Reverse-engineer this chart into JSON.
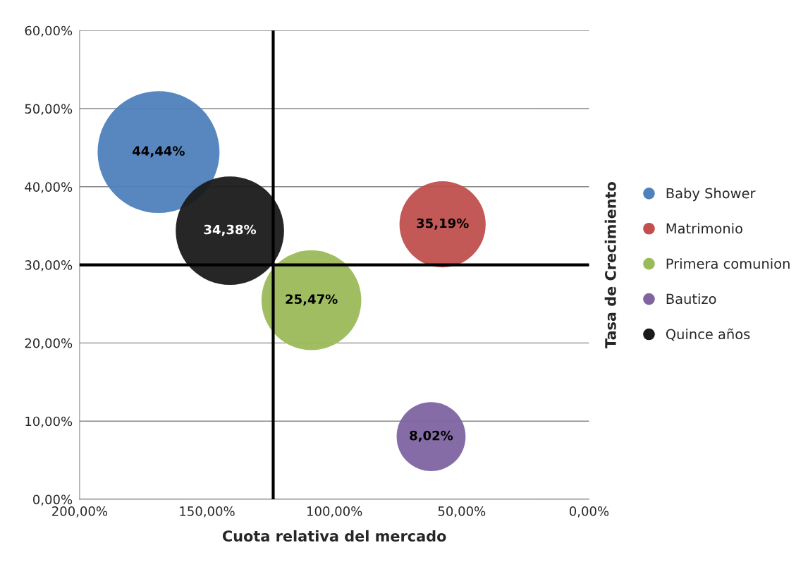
{
  "chart_data": {
    "type": "bubble",
    "xlabel": "Cuota relativa del mercado",
    "ylabel": "Tasa de Crecimiento",
    "xlim": [
      200,
      0
    ],
    "xticks": [
      {
        "value": 200,
        "label": "200,00%"
      },
      {
        "value": 150,
        "label": "150,00%"
      },
      {
        "value": 100,
        "label": "100,00%"
      },
      {
        "value": 50,
        "label": "50,00%"
      },
      {
        "value": 0,
        "label": "0,00%"
      }
    ],
    "ylim": [
      0,
      60
    ],
    "yticks": [
      {
        "value": 0,
        "label": "0,00%"
      },
      {
        "value": 10,
        "label": "10,00%"
      },
      {
        "value": 20,
        "label": "20,00%"
      },
      {
        "value": 30,
        "label": "30,00%"
      },
      {
        "value": 40,
        "label": "40,00%"
      },
      {
        "value": 50,
        "label": "50,00%"
      },
      {
        "value": 60,
        "label": "60,00%"
      }
    ],
    "grid": "y",
    "legend": "right",
    "ref_lines": [
      {
        "axis": "x",
        "value": 124,
        "color": "#000000"
      },
      {
        "axis": "y",
        "value": 30,
        "color": "#000000"
      }
    ],
    "series": [
      {
        "name": "Baby Shower",
        "color": "#4f81bd",
        "x": [
          169
        ],
        "values": [
          44.44
        ],
        "sizes": [
          1
        ],
        "value_labels": [
          "44,44%"
        ]
      },
      {
        "name": "Matrimonio",
        "color": "#c0504d",
        "x": [
          57.5
        ],
        "values": [
          35.19
        ],
        "sizes": [
          0.5
        ],
        "value_labels": [
          "35,19%"
        ]
      },
      {
        "name": "Primera comunion",
        "color": "#9bbb59",
        "x": [
          109
        ],
        "values": [
          25.47
        ],
        "sizes": [
          0.67
        ],
        "value_labels": [
          "25,47%"
        ]
      },
      {
        "name": "Bautizo",
        "color": "#8064a2",
        "x": [
          62
        ],
        "values": [
          8.02
        ],
        "sizes": [
          0.32
        ],
        "value_labels": [
          "8,02%"
        ]
      },
      {
        "name": "Quince años",
        "color": "#1a1a1a",
        "x": [
          141
        ],
        "values": [
          34.38
        ],
        "sizes": [
          0.79
        ],
        "value_labels": [
          "34,38%"
        ]
      }
    ]
  }
}
